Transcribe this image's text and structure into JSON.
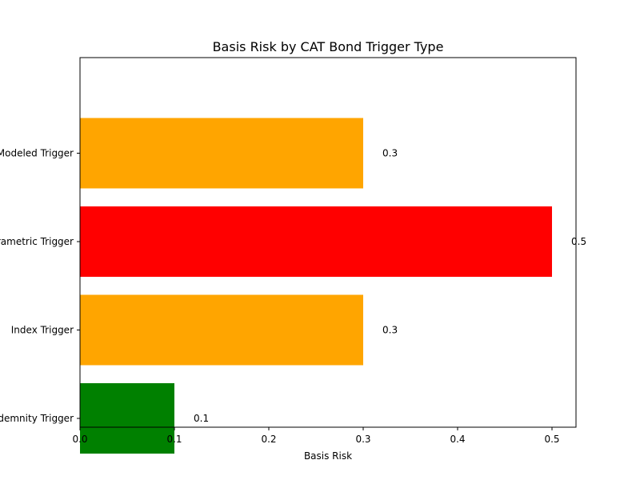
{
  "chart_data": {
    "type": "bar",
    "orientation": "horizontal",
    "title": "Basis Risk by CAT Bond Trigger Type",
    "xlabel": "Basis Risk",
    "ylabel": "",
    "categories": [
      "Indemnity Trigger",
      "Index Trigger",
      "Parametric Trigger",
      "Modeled Trigger"
    ],
    "values": [
      0.1,
      0.3,
      0.5,
      0.3
    ],
    "bar_colors": [
      "#008000",
      "#ffa500",
      "#ff0000",
      "#ffa500"
    ],
    "data_labels": [
      "0.1",
      "0.3",
      "0.5",
      "0.3"
    ],
    "xlim": [
      0,
      0.525
    ],
    "xticks": [
      0.0,
      0.1,
      0.2,
      0.3,
      0.4,
      0.5
    ],
    "xtick_labels": [
      "0.0",
      "0.1",
      "0.2",
      "0.3",
      "0.4",
      "0.5"
    ],
    "grid": false,
    "legend": "none"
  }
}
